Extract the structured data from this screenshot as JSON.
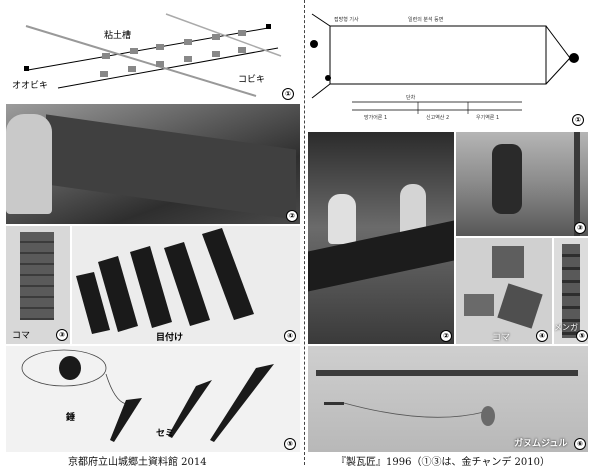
{
  "left": {
    "p1": {
      "top_label": "粘土槽",
      "left_label": "オオビキ",
      "right_label": "コビキ",
      "num": "①"
    },
    "p2": {
      "num": "②"
    },
    "p3": {
      "label": "コマ",
      "num": "③"
    },
    "p4": {
      "label": "目付け",
      "num": "④"
    },
    "p5": {
      "label_weight": "錘",
      "label_cicada": "セミ",
      "num": "⑤"
    },
    "caption": "京都府立山城郷土資料館 2014"
  },
  "right": {
    "p1": {
      "num": "①",
      "tiny_labels": [
        "접방형 기사",
        "일련의 분석 등면",
        "단차",
        "망가어론 1",
        "신고역산 2",
        "우기역론 1"
      ]
    },
    "p2": {
      "num": "②"
    },
    "p3": {
      "num": "③"
    },
    "p4": {
      "label": "コマ",
      "num": "④"
    },
    "p5": {
      "label": "メンガ",
      "num": "⑤"
    },
    "p6": {
      "label": "ガヌムジュル",
      "num": "⑥"
    },
    "caption": "『製瓦匠』1996（①③は、金チャンデ 2010）"
  }
}
